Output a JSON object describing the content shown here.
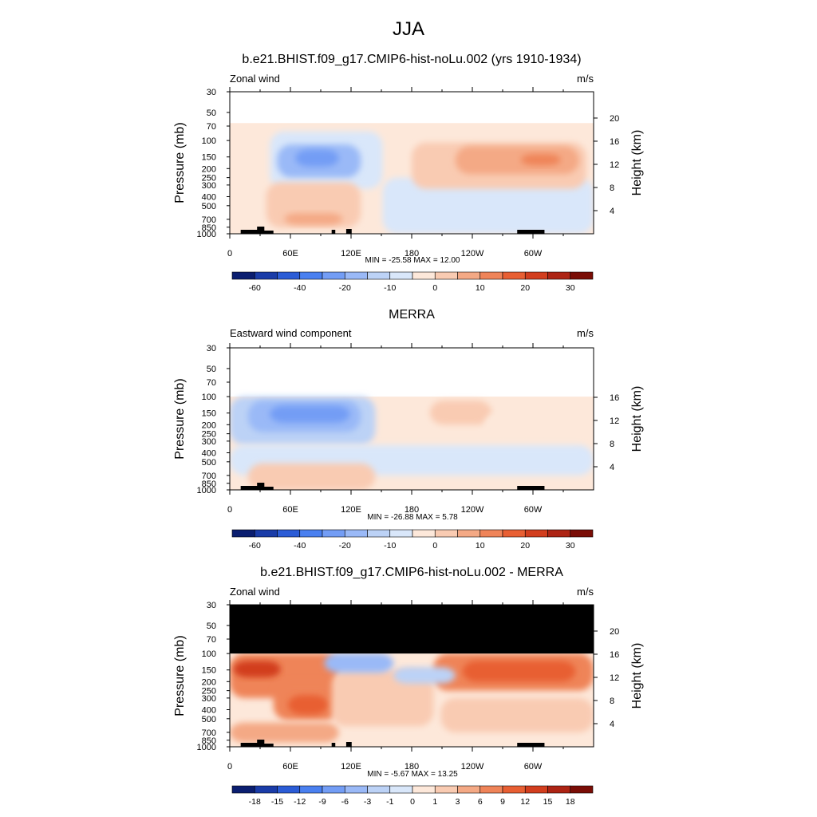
{
  "title": "JJA",
  "chart_data": [
    {
      "type": "heatmap",
      "title": "b.e21.BHIST.f09_g17.CMIP6-hist-noLu.002 (yrs 1910-1934)",
      "variable": "Zonal wind",
      "units": "m/s",
      "ylabel": "Pressure (mb)",
      "ylabel_right": "Height (km)",
      "y_log_scale": true,
      "y_ticks": [
        "30",
        "50",
        "70",
        "100",
        "150",
        "200",
        "250",
        "300",
        "400",
        "500",
        "700",
        "850",
        "1000"
      ],
      "y_right_ticks": [
        "20",
        "16",
        "12",
        "8",
        "4"
      ],
      "x_ticks": [
        "0",
        "60E",
        "120E",
        "180",
        "120W",
        "60W"
      ],
      "stats": "MIN = -25.58  MAX =  12.00",
      "min": -25.58,
      "max": 12.0,
      "colorbar_labels": [
        "-60",
        "-40",
        "-20",
        "-10",
        "0",
        "10",
        "20",
        "30"
      ],
      "top_mb": 30
    },
    {
      "type": "heatmap",
      "title": "MERRA",
      "variable": "Eastward wind component",
      "units": "m/s",
      "ylabel": "Pressure (mb)",
      "ylabel_right": "Height (km)",
      "y_log_scale": true,
      "y_ticks": [
        "30",
        "50",
        "70",
        "100",
        "150",
        "200",
        "250",
        "300",
        "400",
        "500",
        "700",
        "850",
        "1000"
      ],
      "y_right_ticks": [
        "16",
        "12",
        "8",
        "4"
      ],
      "x_ticks": [
        "0",
        "60E",
        "120E",
        "180",
        "120W",
        "60W"
      ],
      "stats": "MIN = -26.88  MAX =   5.78",
      "min": -26.88,
      "max": 5.78,
      "colorbar_labels": [
        "-60",
        "-40",
        "-20",
        "-10",
        "0",
        "10",
        "20",
        "30"
      ],
      "top_mb": 100
    },
    {
      "type": "heatmap",
      "title": "b.e21.BHIST.f09_g17.CMIP6-hist-noLu.002 - MERRA",
      "variable": "Zonal wind",
      "units": "m/s",
      "ylabel": "Pressure (mb)",
      "ylabel_right": "Height (km)",
      "y_log_scale": true,
      "y_ticks": [
        "30",
        "50",
        "70",
        "100",
        "150",
        "200",
        "250",
        "300",
        "400",
        "500",
        "700",
        "850",
        "1000"
      ],
      "y_right_ticks": [
        "20",
        "16",
        "12",
        "8",
        "4"
      ],
      "x_ticks": [
        "0",
        "60E",
        "120E",
        "180",
        "120W",
        "60W"
      ],
      "stats": "MIN =  -5.67  MAX =  13.25",
      "min": -5.67,
      "max": 13.25,
      "colorbar_labels": [
        "-18",
        "-15",
        "-12",
        "-9",
        "-6",
        "-3",
        "-1",
        "0",
        "1",
        "3",
        "6",
        "9",
        "12",
        "15",
        "18"
      ],
      "top_mb": 100,
      "masked_above_mb": 100
    }
  ],
  "colors": {
    "colorbar": [
      "#0b1e70",
      "#1a3ca8",
      "#2b5cd6",
      "#4a80f0",
      "#739df5",
      "#9ab9f7",
      "#bcd2f6",
      "#d9e7fa",
      "#fde8da",
      "#f9cbb2",
      "#f4a985",
      "#ef8459",
      "#e85f33",
      "#d23e1e",
      "#ad2414",
      "#7a0d06"
    ],
    "land": "#000000",
    "mask": "#000000"
  }
}
